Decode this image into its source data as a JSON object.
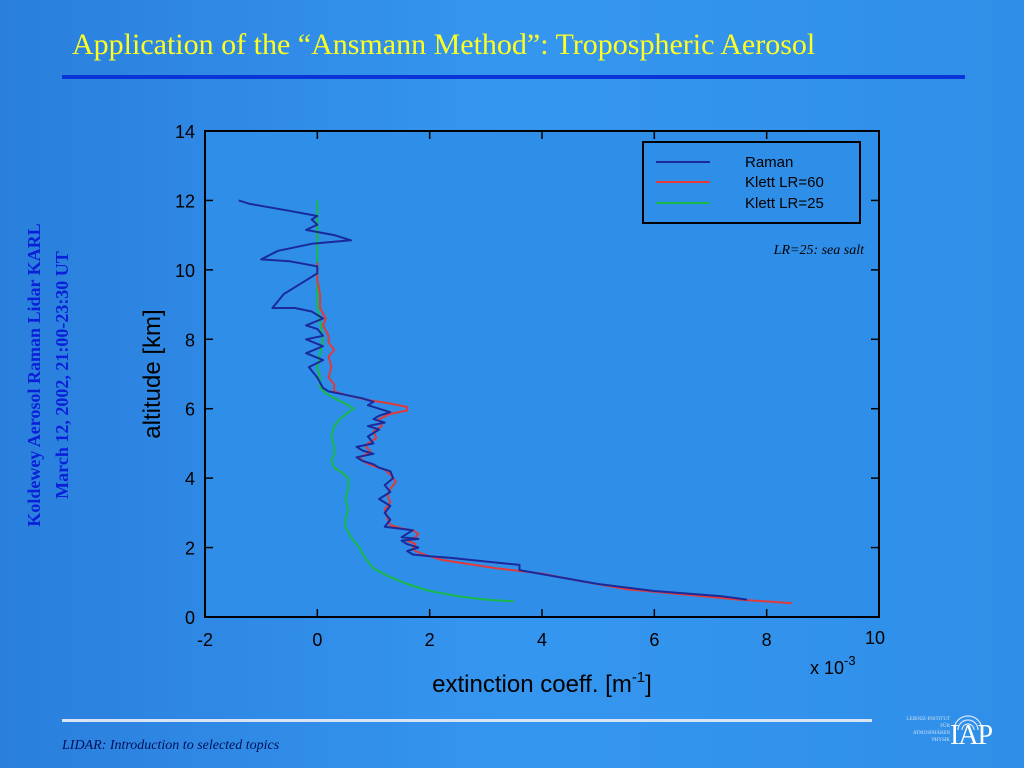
{
  "slide": {
    "title": "Application of the “Ansmann Method”: Tropospheric Aerosol",
    "side_line1": "Koldewey Aerosol Raman Lidar KARL",
    "side_line2": "March 12, 2002, 21:00-23:30 UT",
    "footer": "LIDAR: Introduction to selected topics",
    "logo_text": "IAP",
    "logo_small_lines": [
      "LEIBNIZ-INSTITUT",
      "FÜR",
      "ATMOSPHÄREN",
      "PHYSIK"
    ]
  },
  "chart_data": {
    "type": "line",
    "xlabel": "extinction coeff. [m",
    "xlabel_sup": "-1",
    "xlabel_end": "]",
    "ylabel": "altitude [km]",
    "x_multiplier_base": "x 10",
    "x_multiplier_exp": "-3",
    "xlim": [
      -2,
      10
    ],
    "ylim": [
      0,
      14
    ],
    "xticks": [
      "-2",
      "0",
      "2",
      "4",
      "6",
      "8",
      "10"
    ],
    "yticks": [
      "0",
      "2",
      "4",
      "6",
      "8",
      "10",
      "12",
      "14"
    ],
    "annotation": "LR=25: sea salt",
    "legend_position": "top-right",
    "series": [
      {
        "name": "Raman",
        "color": "#1a2a9a",
        "points": [
          [
            7.65,
            0.5
          ],
          [
            7.2,
            0.6
          ],
          [
            6.0,
            0.75
          ],
          [
            5.0,
            0.95
          ],
          [
            4.3,
            1.15
          ],
          [
            3.6,
            1.35
          ],
          [
            3.6,
            1.5
          ],
          [
            3.0,
            1.6
          ],
          [
            2.4,
            1.7
          ],
          [
            2.0,
            1.75
          ],
          [
            1.7,
            1.8
          ],
          [
            1.6,
            1.9
          ],
          [
            1.8,
            2.0
          ],
          [
            1.6,
            2.1
          ],
          [
            1.5,
            2.2
          ],
          [
            1.8,
            2.25
          ],
          [
            1.5,
            2.3
          ],
          [
            1.6,
            2.4
          ],
          [
            1.7,
            2.5
          ],
          [
            1.2,
            2.6
          ],
          [
            1.3,
            2.8
          ],
          [
            1.2,
            3.0
          ],
          [
            1.3,
            3.2
          ],
          [
            1.1,
            3.4
          ],
          [
            1.3,
            3.6
          ],
          [
            1.2,
            3.8
          ],
          [
            1.35,
            4.0
          ],
          [
            1.3,
            4.2
          ],
          [
            1.1,
            4.3
          ],
          [
            1.0,
            4.4
          ],
          [
            0.8,
            4.5
          ],
          [
            0.7,
            4.6
          ],
          [
            1.0,
            4.7
          ],
          [
            0.8,
            4.8
          ],
          [
            0.7,
            4.9
          ],
          [
            1.0,
            5.0
          ],
          [
            0.9,
            5.2
          ],
          [
            1.1,
            5.4
          ],
          [
            0.9,
            5.5
          ],
          [
            1.2,
            5.6
          ],
          [
            1.0,
            5.7
          ],
          [
            1.1,
            5.8
          ],
          [
            1.3,
            5.9
          ],
          [
            1.1,
            6.0
          ],
          [
            0.9,
            6.1
          ],
          [
            1.0,
            6.2
          ],
          [
            0.8,
            6.3
          ],
          [
            0.5,
            6.4
          ],
          [
            0.2,
            6.5
          ],
          [
            0.1,
            6.6
          ],
          [
            0.0,
            6.9
          ],
          [
            -0.15,
            7.2
          ],
          [
            0.1,
            7.4
          ],
          [
            -0.2,
            7.6
          ],
          [
            0.1,
            7.8
          ],
          [
            -0.2,
            8.0
          ],
          [
            0.1,
            8.1
          ],
          [
            0.0,
            8.3
          ],
          [
            -0.2,
            8.4
          ],
          [
            0.1,
            8.6
          ],
          [
            -0.1,
            8.8
          ],
          [
            -0.4,
            8.9
          ],
          [
            -0.8,
            8.9
          ],
          [
            -0.6,
            9.3
          ],
          [
            -0.2,
            9.7
          ],
          [
            0.0,
            9.9
          ],
          [
            0.0,
            10.1
          ],
          [
            -0.5,
            10.25
          ],
          [
            -1.0,
            10.3
          ],
          [
            -0.7,
            10.55
          ],
          [
            -0.1,
            10.75
          ],
          [
            0.6,
            10.85
          ],
          [
            0.3,
            11.0
          ],
          [
            -0.2,
            11.15
          ],
          [
            0.0,
            11.3
          ],
          [
            -0.1,
            11.45
          ],
          [
            0.0,
            11.55
          ],
          [
            -0.5,
            11.7
          ],
          [
            -1.2,
            11.9
          ],
          [
            -1.4,
            12.0
          ]
        ]
      },
      {
        "name": "Klett LR=60",
        "color": "#e03a3a",
        "points": [
          [
            8.45,
            0.4
          ],
          [
            7.5,
            0.5
          ],
          [
            6.5,
            0.65
          ],
          [
            5.5,
            0.8
          ],
          [
            4.8,
            1.0
          ],
          [
            4.0,
            1.25
          ],
          [
            3.2,
            1.4
          ],
          [
            2.6,
            1.55
          ],
          [
            2.2,
            1.65
          ],
          [
            1.9,
            1.8
          ],
          [
            1.75,
            1.9
          ],
          [
            1.7,
            2.0
          ],
          [
            1.75,
            2.1
          ],
          [
            1.6,
            2.2
          ],
          [
            1.75,
            2.3
          ],
          [
            1.8,
            2.4
          ],
          [
            1.7,
            2.5
          ],
          [
            1.5,
            2.55
          ],
          [
            1.3,
            2.65
          ],
          [
            1.25,
            2.85
          ],
          [
            1.2,
            3.1
          ],
          [
            1.3,
            3.3
          ],
          [
            1.25,
            3.5
          ],
          [
            1.3,
            3.7
          ],
          [
            1.4,
            3.9
          ],
          [
            1.3,
            4.1
          ],
          [
            1.2,
            4.25
          ],
          [
            1.0,
            4.35
          ],
          [
            0.85,
            4.45
          ],
          [
            0.75,
            4.6
          ],
          [
            0.95,
            4.75
          ],
          [
            0.85,
            4.95
          ],
          [
            1.05,
            5.15
          ],
          [
            1.0,
            5.35
          ],
          [
            1.15,
            5.5
          ],
          [
            1.1,
            5.7
          ],
          [
            1.3,
            5.85
          ],
          [
            1.6,
            5.95
          ],
          [
            1.6,
            6.05
          ],
          [
            1.3,
            6.15
          ],
          [
            0.9,
            6.25
          ],
          [
            0.5,
            6.4
          ],
          [
            0.3,
            6.5
          ],
          [
            0.3,
            6.7
          ],
          [
            0.2,
            6.9
          ],
          [
            0.25,
            7.2
          ],
          [
            0.2,
            7.5
          ],
          [
            0.3,
            7.7
          ],
          [
            0.2,
            7.9
          ],
          [
            0.2,
            8.1
          ],
          [
            0.1,
            8.4
          ],
          [
            0.15,
            8.6
          ],
          [
            0.05,
            8.9
          ],
          [
            0.05,
            9.3
          ],
          [
            0.0,
            9.7
          ],
          [
            0.0,
            10.2
          ]
        ]
      },
      {
        "name": "Klett LR=25",
        "color": "#18b848",
        "points": [
          [
            3.5,
            0.45
          ],
          [
            3.0,
            0.5
          ],
          [
            2.5,
            0.6
          ],
          [
            2.0,
            0.75
          ],
          [
            1.6,
            0.95
          ],
          [
            1.3,
            1.15
          ],
          [
            1.0,
            1.4
          ],
          [
            0.85,
            1.7
          ],
          [
            0.75,
            2.0
          ],
          [
            0.6,
            2.3
          ],
          [
            0.5,
            2.6
          ],
          [
            0.5,
            2.8
          ],
          [
            0.55,
            3.1
          ],
          [
            0.5,
            3.4
          ],
          [
            0.55,
            3.7
          ],
          [
            0.55,
            4.0
          ],
          [
            0.45,
            4.15
          ],
          [
            0.3,
            4.3
          ],
          [
            0.25,
            4.5
          ],
          [
            0.3,
            4.7
          ],
          [
            0.3,
            4.9
          ],
          [
            0.25,
            5.2
          ],
          [
            0.3,
            5.5
          ],
          [
            0.4,
            5.7
          ],
          [
            0.55,
            5.9
          ],
          [
            0.65,
            6.0
          ],
          [
            0.5,
            6.15
          ],
          [
            0.3,
            6.3
          ],
          [
            0.15,
            6.45
          ],
          [
            0.05,
            6.6
          ],
          [
            0.05,
            6.9
          ],
          [
            0.0,
            7.2
          ],
          [
            0.05,
            7.6
          ],
          [
            0.1,
            8.0
          ],
          [
            0.05,
            8.5
          ],
          [
            0.0,
            9.0
          ],
          [
            0.0,
            10.0
          ],
          [
            0.0,
            11.0
          ],
          [
            0.0,
            12.0
          ]
        ]
      }
    ]
  }
}
